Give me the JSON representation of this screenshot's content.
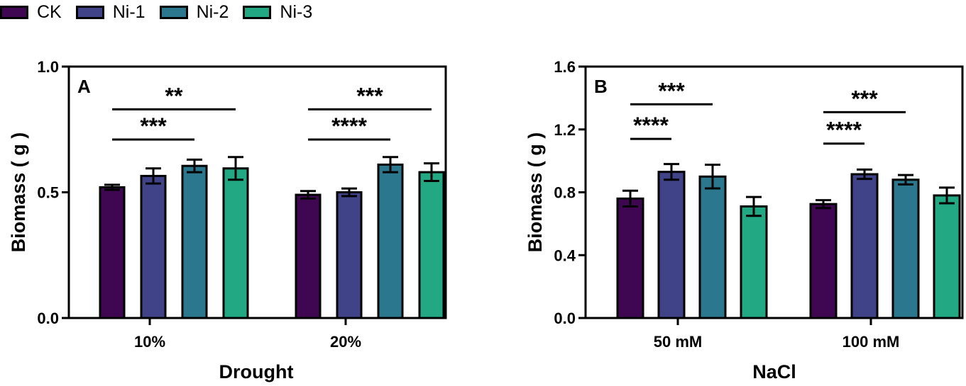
{
  "legend": [
    {
      "label": "CK",
      "color": "#3f0751"
    },
    {
      "label": "Ni-1",
      "color": "#414388"
    },
    {
      "label": "Ni-2",
      "color": "#2b788e"
    },
    {
      "label": "Ni-3",
      "color": "#23a884"
    }
  ],
  "chart_data": [
    {
      "type": "bar",
      "panel_label": "A",
      "xlabel": "Drought",
      "ylabel": "Biomass ( g )",
      "ylim": [
        0,
        1.0
      ],
      "yticks": [
        0.0,
        0.5,
        1.0
      ],
      "ytick_labels": [
        "0.0",
        "0.5",
        "1.0"
      ],
      "categories": [
        "10%",
        "20%"
      ],
      "series": [
        {
          "name": "CK",
          "values": [
            0.52,
            0.49
          ],
          "errors": [
            0.01,
            0.015
          ]
        },
        {
          "name": "Ni-1",
          "values": [
            0.565,
            0.5
          ],
          "errors": [
            0.03,
            0.015
          ]
        },
        {
          "name": "Ni-2",
          "values": [
            0.605,
            0.61
          ],
          "errors": [
            0.025,
            0.03
          ]
        },
        {
          "name": "Ni-3",
          "values": [
            0.595,
            0.58
          ],
          "errors": [
            0.045,
            0.035
          ]
        }
      ],
      "significance": [
        {
          "category": 0,
          "from": 0,
          "to": 2,
          "label": "***",
          "y": 0.71
        },
        {
          "category": 0,
          "from": 0,
          "to": 3,
          "label": "**",
          "y": 0.83
        },
        {
          "category": 1,
          "from": 0,
          "to": 2,
          "label": "****",
          "y": 0.71
        },
        {
          "category": 1,
          "from": 0,
          "to": 3,
          "label": "***",
          "y": 0.83
        }
      ]
    },
    {
      "type": "bar",
      "panel_label": "B",
      "xlabel": "NaCl",
      "ylabel": "Biomass ( g )",
      "ylim": [
        0,
        1.6
      ],
      "yticks": [
        0.0,
        0.4,
        0.8,
        1.2,
        1.6
      ],
      "ytick_labels": [
        "0.0",
        "0.4",
        "0.8",
        "1.2",
        "1.6"
      ],
      "categories": [
        "50 mM",
        "100 mM"
      ],
      "series": [
        {
          "name": "CK",
          "values": [
            0.76,
            0.725
          ],
          "errors": [
            0.05,
            0.025
          ]
        },
        {
          "name": "Ni-1",
          "values": [
            0.93,
            0.915
          ],
          "errors": [
            0.05,
            0.03
          ]
        },
        {
          "name": "Ni-2",
          "values": [
            0.9,
            0.88
          ],
          "errors": [
            0.075,
            0.03
          ]
        },
        {
          "name": "Ni-3",
          "values": [
            0.71,
            0.78
          ],
          "errors": [
            0.06,
            0.05
          ]
        }
      ],
      "significance": [
        {
          "category": 0,
          "from": 0,
          "to": 1,
          "label": "****",
          "y": 1.14
        },
        {
          "category": 0,
          "from": 0,
          "to": 2,
          "label": "***",
          "y": 1.36
        },
        {
          "category": 1,
          "from": 0,
          "to": 1,
          "label": "****",
          "y": 1.11
        },
        {
          "category": 1,
          "from": 0,
          "to": 2,
          "label": "***",
          "y": 1.31
        }
      ]
    }
  ]
}
